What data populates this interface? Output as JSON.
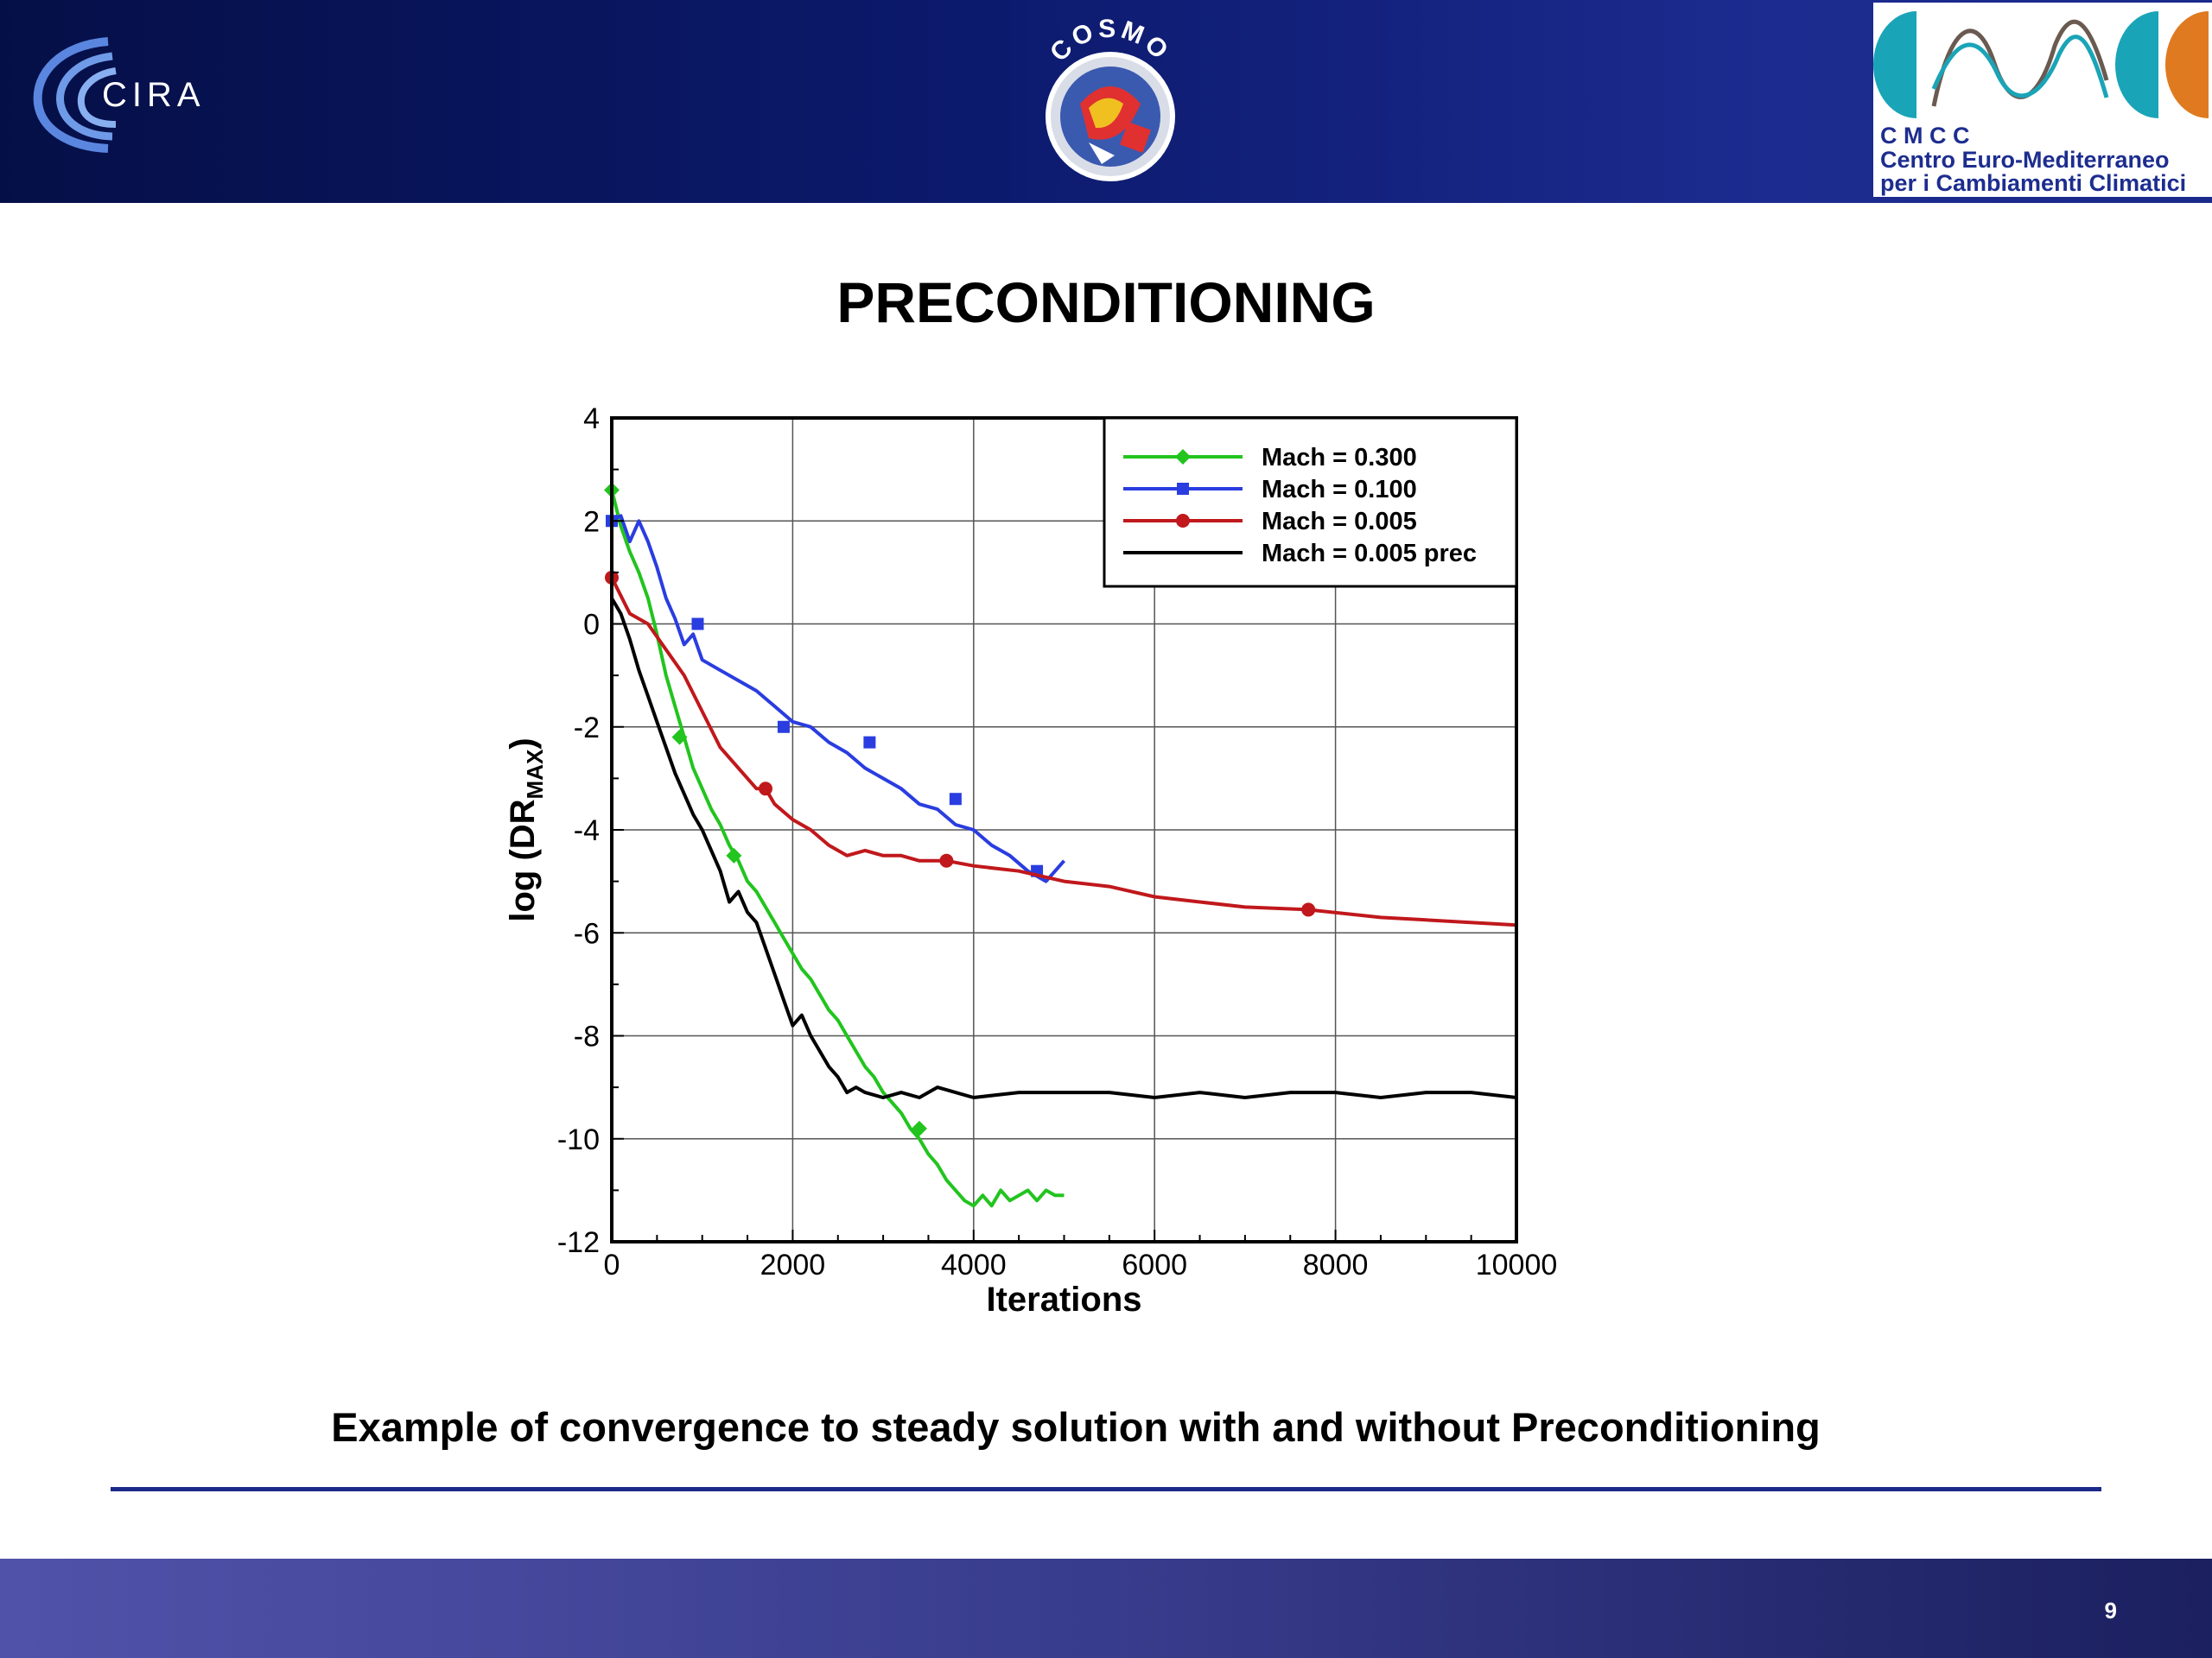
{
  "header": {
    "cira_logo_text": "CIRA",
    "cosmo_logo_text": "COSMO",
    "cmcc": {
      "line1": "C M C C",
      "line2": "Centro  Euro-Mediterraneo",
      "line3": "per i Cambiamenti Climatici"
    }
  },
  "slide": {
    "title": "PRECONDITIONING",
    "caption": "Example of convergence to steady solution with and without Preconditioning",
    "page_number": "9"
  },
  "colors": {
    "header_blue": "#0c1a6e",
    "green": "#22c41e",
    "blue": "#2a3de0",
    "red": "#c0181c",
    "black": "#000000"
  },
  "chart_data": {
    "type": "line",
    "title": "",
    "xlabel": "Iterations",
    "ylabel": "log (DR",
    "ylabel_sub": "MAX",
    "ylabel_close": ")",
    "xlim": [
      0,
      10000
    ],
    "ylim": [
      -12,
      4
    ],
    "xticks": [
      0,
      2000,
      4000,
      6000,
      8000,
      10000
    ],
    "yticks": [
      4,
      2,
      0,
      -2,
      -4,
      -6,
      -8,
      -10,
      -12
    ],
    "grid": true,
    "legend_position": "top-right",
    "series": [
      {
        "name": "Mach = 0.300",
        "color": "#22c41e",
        "marker": "diamond",
        "x": [
          0,
          100,
          200,
          300,
          400,
          500,
          600,
          700,
          800,
          900,
          1000,
          1100,
          1200,
          1300,
          1400,
          1500,
          1600,
          1700,
          1800,
          1900,
          2000,
          2100,
          2200,
          2300,
          2400,
          2500,
          2600,
          2700,
          2800,
          2900,
          3000,
          3100,
          3200,
          3300,
          3400,
          3500,
          3600,
          3700,
          3800,
          3900,
          4000,
          4100,
          4200,
          4300,
          4400,
          4500,
          4600,
          4700,
          4800,
          4900,
          5000
        ],
        "y": [
          2.6,
          1.9,
          1.4,
          1.0,
          0.5,
          -0.2,
          -1.0,
          -1.6,
          -2.2,
          -2.8,
          -3.2,
          -3.6,
          -3.9,
          -4.3,
          -4.6,
          -5.0,
          -5.2,
          -5.5,
          -5.8,
          -6.1,
          -6.4,
          -6.7,
          -6.9,
          -7.2,
          -7.5,
          -7.7,
          -8.0,
          -8.3,
          -8.6,
          -8.8,
          -9.1,
          -9.3,
          -9.5,
          -9.8,
          -10.0,
          -10.3,
          -10.5,
          -10.8,
          -11.0,
          -11.2,
          -11.3,
          -11.1,
          -11.3,
          -11.0,
          -11.2,
          -11.1,
          -11.0,
          -11.2,
          -11.0,
          -11.1,
          -11.1
        ],
        "markers_x": [
          0,
          750,
          1350,
          3400
        ],
        "markers_y": [
          2.6,
          -2.2,
          -4.5,
          -9.8
        ]
      },
      {
        "name": "Mach = 0.100",
        "color": "#2a3de0",
        "marker": "square",
        "x": [
          0,
          100,
          200,
          300,
          400,
          500,
          600,
          700,
          800,
          900,
          1000,
          1200,
          1400,
          1600,
          1800,
          2000,
          2200,
          2400,
          2600,
          2800,
          3000,
          3200,
          3400,
          3600,
          3800,
          4000,
          4200,
          4400,
          4600,
          4800,
          5000
        ],
        "y": [
          2.0,
          2.1,
          1.6,
          2.0,
          1.6,
          1.1,
          0.5,
          0.1,
          -0.4,
          -0.2,
          -0.7,
          -0.9,
          -1.1,
          -1.3,
          -1.6,
          -1.9,
          -2.0,
          -2.3,
          -2.5,
          -2.8,
          -3.0,
          -3.2,
          -3.5,
          -3.6,
          -3.9,
          -4.0,
          -4.3,
          -4.5,
          -4.8,
          -5.0,
          -4.6
        ],
        "markers_x": [
          0,
          950,
          1900,
          2850,
          3800,
          4700
        ],
        "markers_y": [
          2.0,
          0.0,
          -2.0,
          -2.3,
          -3.4,
          -4.8
        ]
      },
      {
        "name": "Mach = 0.005",
        "color": "#c0181c",
        "marker": "circle",
        "x": [
          0,
          200,
          400,
          600,
          800,
          1000,
          1200,
          1400,
          1600,
          1700,
          1800,
          2000,
          2200,
          2400,
          2600,
          2800,
          3000,
          3200,
          3400,
          3700,
          4000,
          4500,
          5000,
          5500,
          6000,
          6500,
          7000,
          7700,
          8500,
          9000,
          10000
        ],
        "y": [
          0.9,
          0.2,
          0.0,
          -0.5,
          -1.0,
          -1.7,
          -2.4,
          -2.8,
          -3.2,
          -3.2,
          -3.5,
          -3.8,
          -4.0,
          -4.3,
          -4.5,
          -4.4,
          -4.5,
          -4.5,
          -4.6,
          -4.6,
          -4.7,
          -4.8,
          -5.0,
          -5.1,
          -5.3,
          -5.4,
          -5.5,
          -5.55,
          -5.7,
          -5.75,
          -5.85
        ],
        "markers_x": [
          0,
          1700,
          3700,
          7700
        ],
        "markers_y": [
          0.9,
          -3.2,
          -4.6,
          -5.55
        ]
      },
      {
        "name": "Mach = 0.005 prec",
        "color": "#000000",
        "marker": "none",
        "x": [
          0,
          100,
          200,
          300,
          400,
          500,
          600,
          700,
          800,
          900,
          1000,
          1100,
          1200,
          1300,
          1400,
          1500,
          1600,
          1700,
          1800,
          1900,
          2000,
          2100,
          2200,
          2300,
          2400,
          2500,
          2600,
          2700,
          2800,
          3000,
          3200,
          3400,
          3600,
          3800,
          4000,
          4500,
          5000,
          5500,
          6000,
          6500,
          7000,
          7500,
          8000,
          8500,
          9000,
          9500,
          10000
        ],
        "y": [
          0.5,
          0.2,
          -0.3,
          -0.9,
          -1.4,
          -1.9,
          -2.4,
          -2.9,
          -3.3,
          -3.7,
          -4.0,
          -4.4,
          -4.8,
          -5.4,
          -5.2,
          -5.6,
          -5.8,
          -6.3,
          -6.8,
          -7.3,
          -7.8,
          -7.6,
          -8.0,
          -8.3,
          -8.6,
          -8.8,
          -9.1,
          -9.0,
          -9.1,
          -9.2,
          -9.1,
          -9.2,
          -9.0,
          -9.1,
          -9.2,
          -9.1,
          -9.1,
          -9.1,
          -9.2,
          -9.1,
          -9.2,
          -9.1,
          -9.1,
          -9.2,
          -9.1,
          -9.1,
          -9.2
        ],
        "markers_x": [],
        "markers_y": []
      }
    ]
  }
}
